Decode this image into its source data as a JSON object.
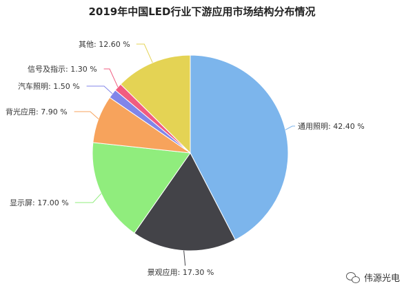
{
  "chart_data": {
    "type": "pie",
    "title": "2019年中国LED行业下游应用市场结构分布情况",
    "slices": [
      {
        "label": "通用照明",
        "value": 42.4,
        "display": "通用照明: 42.40 %",
        "color": "#7cb5ec"
      },
      {
        "label": "景观应用",
        "value": 17.3,
        "display": "景观应用: 17.30 %",
        "color": "#434348"
      },
      {
        "label": "显示屏",
        "value": 17.0,
        "display": "显示屏: 17.00 %",
        "color": "#90ed7d"
      },
      {
        "label": "背光应用",
        "value": 7.9,
        "display": "背光应用: 7.90 %",
        "color": "#f7a35c"
      },
      {
        "label": "汽车照明",
        "value": 1.5,
        "display": "汽车照明: 1.50 %",
        "color": "#8085e9"
      },
      {
        "label": "信号及指示",
        "value": 1.3,
        "display": "信号及指示: 1.30 %",
        "color": "#f15c80"
      },
      {
        "label": "其他",
        "value": 12.6,
        "display": "其他: 12.60 %",
        "color": "#e4d354"
      }
    ]
  },
  "credit": {
    "text": "伟源光电",
    "icon": "wechat-icon"
  }
}
